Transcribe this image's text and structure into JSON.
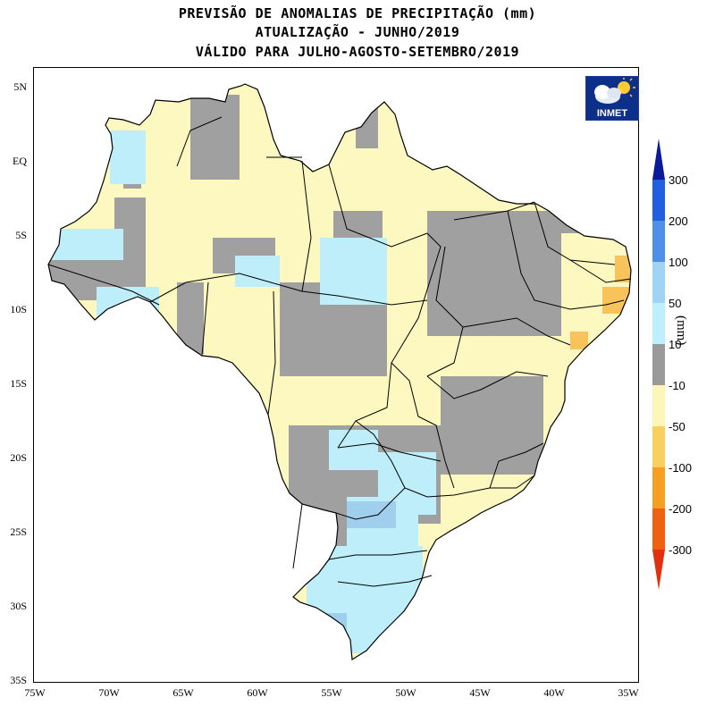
{
  "title": {
    "line1": "PREVISÃO DE ANOMALIAS DE PRECIPITAÇÃO (mm)",
    "line2": "ATUALIZAÇÃO - JUNHO/2019",
    "line3": "VÁLIDO PARA JULHO-AGOSTO-SETEMBRO/2019"
  },
  "axes": {
    "y_labels": [
      "5N",
      "EQ",
      "5S",
      "10S",
      "15S",
      "20S",
      "25S",
      "30S",
      "35S"
    ],
    "x_labels": [
      "75W",
      "70W",
      "65W",
      "60W",
      "55W",
      "50W",
      "45W",
      "40W",
      "35W"
    ]
  },
  "logo": {
    "text": "INMET",
    "icon": "cloud-sun-icon"
  },
  "colorbar": {
    "unit": "(mm)",
    "labels": [
      "300",
      "200",
      "100",
      "50",
      "10",
      "-10",
      "-50",
      "-100",
      "-200",
      "-300"
    ],
    "colors": [
      "#0a1a9a",
      "#1f5fe0",
      "#4f8fe8",
      "#9fd4f5",
      "#bfeefc",
      "#9a9a9a",
      "#fcf6b8",
      "#f7d060",
      "#f5a020",
      "#ef6010",
      "#e03010"
    ]
  },
  "legend_colors": {
    "gray": "#a0a0a0",
    "yellow": "#fcf8c0",
    "cyan": "#bdeefa",
    "light_blue": "#9fcfec",
    "orange": "#f8c35a",
    "border": "#000000"
  }
}
